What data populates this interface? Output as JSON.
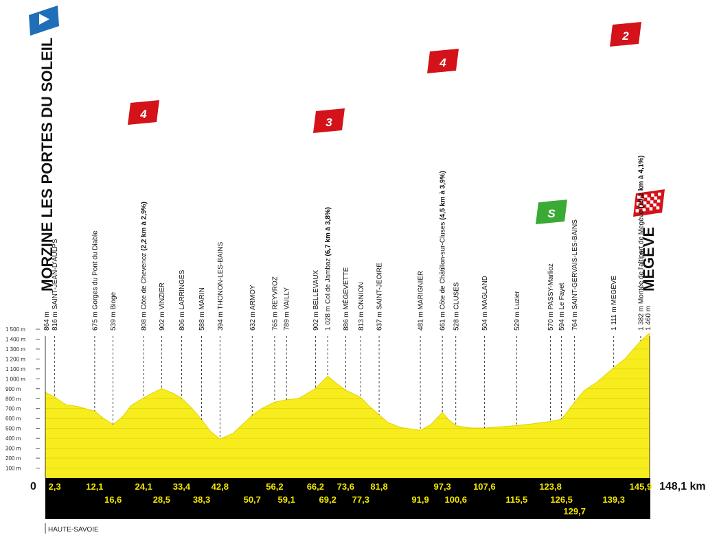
{
  "stage": {
    "start_name": "MORZINE LES PORTES DU SOLEIL",
    "start_alt": "864 m",
    "finish_name": "MEGÈVE",
    "finish_alt": "1 460 m",
    "total_km": "148,1 km",
    "start_km": "0",
    "region": "HAUTE-SAVOIE"
  },
  "badges": [
    {
      "label": "4",
      "kind": "cat4",
      "color": "#d3121a"
    },
    {
      "label": "3",
      "kind": "cat3",
      "color": "#d3121a"
    },
    {
      "label": "4",
      "kind": "cat4",
      "color": "#d3121a"
    },
    {
      "label": "2",
      "kind": "cat2",
      "color": "#d3121a"
    },
    {
      "label": "S",
      "kind": "sprint",
      "color": "#3aaa35"
    }
  ],
  "colors": {
    "profile_fill": "#f7ec1e",
    "profile_stroke": "#e3d400",
    "band": "#000000",
    "km_text": "#f2e600",
    "start_flag": "#1f6fb8",
    "finish_flag": "#d3121a"
  },
  "waypoints": [
    {
      "alt": "816 m",
      "name": "SAINT-JEAN-D'AULPS",
      "km": "2,3"
    },
    {
      "alt": "675 m",
      "name": "Gorges du Pont du Diable",
      "km": "12,1"
    },
    {
      "alt": "539 m",
      "name": "Bioge",
      "km": "16,6"
    },
    {
      "alt": "808 m",
      "name": "Côte de Chevenoz",
      "climb": "(2,2 km à 2,9%)",
      "km": "24,1"
    },
    {
      "alt": "902 m",
      "name": "VINZIER",
      "km": "28,5"
    },
    {
      "alt": "806 m",
      "name": "LARRINGES",
      "km": "33,4"
    },
    {
      "alt": "588 m",
      "name": "MARIN",
      "km": "38,3"
    },
    {
      "alt": "394 m",
      "name": "THONON-LES-BAINS",
      "km": "42,8"
    },
    {
      "alt": "632 m",
      "name": "ARMOY",
      "km": "50,7"
    },
    {
      "alt": "765 m",
      "name": "REYVROZ",
      "km": "56,2"
    },
    {
      "alt": "789 m",
      "name": "VAILLY",
      "km": "59,1"
    },
    {
      "alt": "902 m",
      "name": "BELLEVAUX",
      "km": "66,2"
    },
    {
      "alt": "1 028 m",
      "name": "Col de Jambaz",
      "climb": "(6,7 km à 3,8%)",
      "km": "69,2"
    },
    {
      "alt": "886 m",
      "name": "MÉGEVETTE",
      "km": "73,6"
    },
    {
      "alt": "813 m",
      "name": "ONNION",
      "km": "77,3"
    },
    {
      "alt": "637 m",
      "name": "SAINT-JEOIRE",
      "km": "81,8"
    },
    {
      "alt": "481 m",
      "name": "MARIGNIER",
      "km": "91,9"
    },
    {
      "alt": "661 m",
      "name": "Côte de Châtillon-sur-Cluses",
      "climb": "(4,5 km à 3,9%)",
      "km": "97,3"
    },
    {
      "alt": "528 m",
      "name": "CLUSES",
      "km": "100,6"
    },
    {
      "alt": "504 m",
      "name": "MAGLAND",
      "km": "107,6"
    },
    {
      "alt": "529 m",
      "name": "Luzier",
      "km": "115,5"
    },
    {
      "alt": "570 m",
      "name": "PASSY-Marlioz",
      "km": "123,8"
    },
    {
      "alt": "594 m",
      "name": "Le Fayet",
      "km": "126,5"
    },
    {
      "alt": "764 m",
      "name": "SAINT-GERVAIS-LES-BAINS",
      "km": "129,7"
    },
    {
      "alt": "1 111 m",
      "name": "MEGÈVE",
      "km": "139,3"
    },
    {
      "alt": "1 382 m",
      "name": "Montée de l'altiport de Megève",
      "climb": "(19,2 km à 4,1%)",
      "km": "145,9"
    }
  ],
  "chart_data": {
    "type": "area",
    "xlabel": "",
    "ylabel": "",
    "xlim": [
      0,
      148.1
    ],
    "ylim": [
      0,
      1500
    ],
    "yticks": [
      "100 m",
      "200 m",
      "300 m",
      "400 m",
      "500 m",
      "600 m",
      "700 m",
      "800 m",
      "900 m",
      "1 000 m",
      "1 100 m",
      "1 200 m",
      "1 300 m",
      "1 400 m",
      "1 500 m"
    ],
    "x": [
      0,
      2.3,
      5,
      8,
      12.1,
      14,
      16.6,
      19,
      21,
      24.1,
      26,
      28.5,
      31,
      33.4,
      36,
      38.3,
      40.5,
      42.8,
      46,
      50.7,
      53,
      56.2,
      59.1,
      62,
      66.2,
      69.2,
      71.5,
      73.6,
      77.3,
      79.5,
      81.8,
      84,
      87,
      91.9,
      94.5,
      97.3,
      98.8,
      100.6,
      104,
      107.6,
      111,
      115.5,
      119,
      123.8,
      126.5,
      129.7,
      132,
      135,
      139.3,
      142,
      145.9,
      148.1
    ],
    "y": [
      864,
      816,
      740,
      720,
      675,
      610,
      539,
      620,
      730,
      808,
      850,
      902,
      860,
      806,
      700,
      588,
      470,
      394,
      450,
      632,
      700,
      765,
      789,
      800,
      902,
      1028,
      950,
      886,
      813,
      720,
      637,
      560,
      510,
      481,
      540,
      661,
      590,
      528,
      505,
      504,
      515,
      529,
      545,
      570,
      594,
      764,
      880,
      960,
      1111,
      1200,
      1382,
      1460
    ]
  }
}
